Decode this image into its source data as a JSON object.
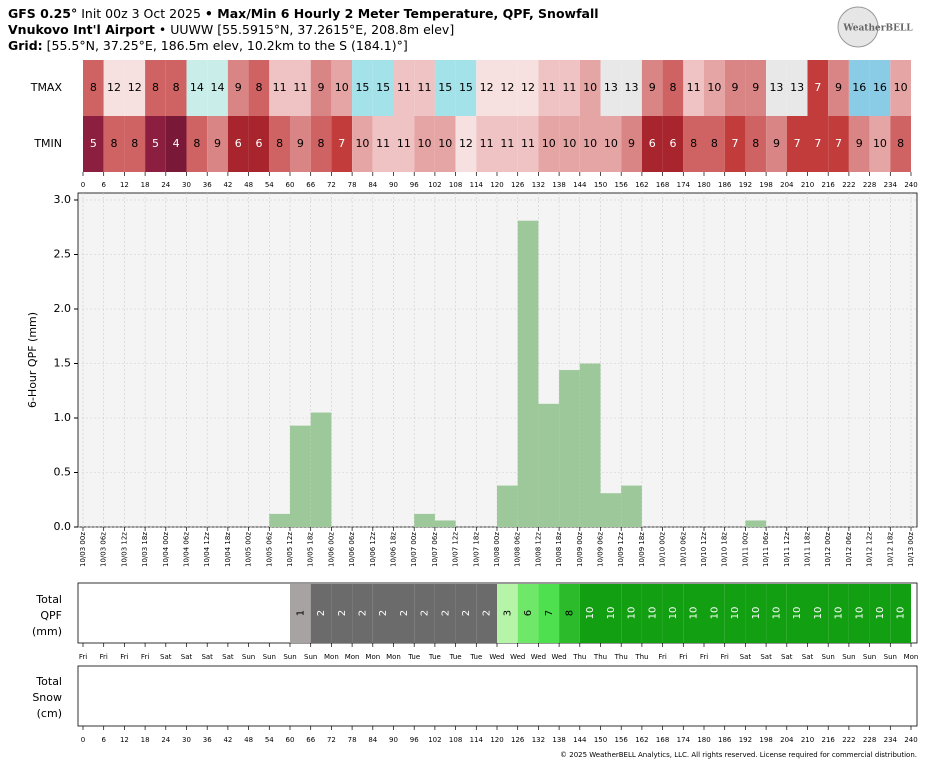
{
  "header": {
    "line1": [
      "GFS 0.25°",
      " Init 00z 3 Oct 2025 ",
      "• Max/Min 6 Hourly 2 Meter Temperature,  QPF,  Snowfall"
    ],
    "line2": [
      "Vnukovo Int'l Airport",
      " • UUWW [55.5915°N, 37.2615°E, 208.8m elev]"
    ],
    "line3": [
      "Grid:",
      " [55.5°N, 37.25°E, 186.5m elev, 10.2km to the S (184.1)°]"
    ],
    "logo": "WeatherBELL"
  },
  "footer": "© 2025 WeatherBELL Analytics, LLC. All rights reserved. License required for commercial distribution.",
  "chart_data": [
    {
      "type": "heatmap",
      "xlim": [
        0,
        240
      ],
      "xticks": [
        0,
        6,
        12,
        18,
        24,
        30,
        36,
        42,
        48,
        54,
        60,
        66,
        72,
        78,
        84,
        90,
        96,
        102,
        108,
        114,
        120,
        126,
        132,
        138,
        144,
        150,
        156,
        162,
        168,
        174,
        180,
        186,
        192,
        198,
        204,
        210,
        216,
        222,
        228,
        234,
        240
      ],
      "series": [
        {
          "name": "TMAX",
          "values": [
            8,
            12,
            12,
            8,
            8,
            14,
            14,
            9,
            8,
            11,
            11,
            9,
            10,
            15,
            15,
            11,
            11,
            15,
            15,
            12,
            12,
            12,
            11,
            11,
            10,
            13,
            13,
            9,
            8,
            11,
            10,
            9,
            9,
            13,
            13,
            7,
            9,
            16,
            16,
            10
          ]
        },
        {
          "name": "TMIN",
          "values": [
            5,
            8,
            8,
            5,
            4,
            8,
            9,
            6,
            6,
            8,
            9,
            8,
            7,
            10,
            11,
            11,
            10,
            10,
            12,
            11,
            11,
            11,
            10,
            10,
            10,
            10,
            9,
            6,
            6,
            8,
            8,
            7,
            8,
            9,
            7,
            7,
            7,
            9,
            10,
            8
          ]
        }
      ]
    },
    {
      "type": "bar",
      "ylabel": "6-Hour QPF (mm)",
      "color": "#9dc89a",
      "grid": true,
      "ylim": [
        0,
        3.0
      ],
      "yticks": [
        {
          "value": 0,
          "label": "0.0"
        },
        0.5,
        {
          "value": 1,
          "label": "1.0"
        },
        1.5,
        {
          "value": 2,
          "label": "2.0"
        },
        2.5,
        {
          "value": 3,
          "label": "3.0"
        }
      ],
      "xlim": [
        0,
        240
      ],
      "xticks": [
        {
          "value": 0,
          "label": "10/03 00z"
        },
        {
          "value": 6,
          "label": "10/03 06z"
        },
        {
          "value": 12,
          "label": "10/03 12z"
        },
        {
          "value": 18,
          "label": "10/03 18z"
        },
        {
          "value": 24,
          "label": "10/04 00z"
        },
        {
          "value": 30,
          "label": "10/04 06z"
        },
        {
          "value": 36,
          "label": "10/04 12z"
        },
        {
          "value": 42,
          "label": "10/04 18z"
        },
        {
          "value": 48,
          "label": "10/05 00z"
        },
        {
          "value": 54,
          "label": "10/05 06z"
        },
        {
          "value": 60,
          "label": "10/05 12z"
        },
        {
          "value": 66,
          "label": "10/05 18z"
        },
        {
          "value": 72,
          "label": "10/06 00z"
        },
        {
          "value": 78,
          "label": "10/06 06z"
        },
        {
          "value": 84,
          "label": "10/06 12z"
        },
        {
          "value": 90,
          "label": "10/06 18z"
        },
        {
          "value": 96,
          "label": "10/07 00z"
        },
        {
          "value": 102,
          "label": "10/07 06z"
        },
        {
          "value": 108,
          "label": "10/07 12z"
        },
        {
          "value": 114,
          "label": "10/07 18z"
        },
        {
          "value": 120,
          "label": "10/08 00z"
        },
        {
          "value": 126,
          "label": "10/08 06z"
        },
        {
          "value": 132,
          "label": "10/08 12z"
        },
        {
          "value": 138,
          "label": "10/08 18z"
        },
        {
          "value": 144,
          "label": "10/09 00z"
        },
        {
          "value": 150,
          "label": "10/09 06z"
        },
        {
          "value": 156,
          "label": "10/09 12z"
        },
        {
          "value": 162,
          "label": "10/09 18z"
        },
        {
          "value": 168,
          "label": "10/10 00z"
        },
        {
          "value": 174,
          "label": "10/10 06z"
        },
        {
          "value": 180,
          "label": "10/10 12z"
        },
        {
          "value": 186,
          "label": "10/10 18z"
        },
        {
          "value": 192,
          "label": "10/11 00z"
        },
        {
          "value": 198,
          "label": "10/11 06z"
        },
        {
          "value": 204,
          "label": "10/11 12z"
        },
        {
          "value": 210,
          "label": "10/11 18z"
        },
        {
          "value": 216,
          "label": "10/12 00z"
        },
        {
          "value": 222,
          "label": "10/12 06z"
        },
        {
          "value": 228,
          "label": "10/12 12z"
        },
        {
          "value": 234,
          "label": "10/12 18z"
        },
        {
          "value": 240,
          "label": "10/13 00z"
        }
      ],
      "x": [
        0,
        6,
        12,
        18,
        24,
        30,
        36,
        42,
        48,
        54,
        60,
        66,
        72,
        78,
        84,
        90,
        96,
        102,
        108,
        114,
        120,
        126,
        132,
        138,
        144,
        150,
        156,
        162,
        168,
        174,
        180,
        186,
        192,
        198,
        204,
        210,
        216,
        222,
        228,
        234
      ],
      "values": [
        0,
        0,
        0,
        0,
        0,
        0,
        0,
        0,
        0,
        0.12,
        0.93,
        1.05,
        0,
        0,
        0,
        0,
        0.12,
        0.06,
        0,
        0,
        0.38,
        2.81,
        1.13,
        1.44,
        1.5,
        0.31,
        0.38,
        0,
        0,
        0,
        0,
        0,
        0.06,
        0,
        0,
        0,
        0,
        0,
        0,
        0
      ]
    },
    {
      "type": "heatmap",
      "ylabel": [
        "Total",
        "QPF",
        "(mm)"
      ],
      "xlim": [
        0,
        240
      ],
      "xticks": [
        {
          "value": 0,
          "label": "Fri"
        },
        {
          "value": 6,
          "label": "Fri"
        },
        {
          "value": 12,
          "label": "Fri"
        },
        {
          "value": 18,
          "label": "Fri"
        },
        {
          "value": 24,
          "label": "Sat"
        },
        {
          "value": 30,
          "label": "Sat"
        },
        {
          "value": 36,
          "label": "Sat"
        },
        {
          "value": 42,
          "label": "Sat"
        },
        {
          "value": 48,
          "label": "Sun"
        },
        {
          "value": 54,
          "label": "Sun"
        },
        {
          "value": 60,
          "label": "Sun"
        },
        {
          "value": 66,
          "label": "Sun"
        },
        {
          "value": 72,
          "label": "Mon"
        },
        {
          "value": 78,
          "label": "Mon"
        },
        {
          "value": 84,
          "label": "Mon"
        },
        {
          "value": 90,
          "label": "Mon"
        },
        {
          "value": 96,
          "label": "Tue"
        },
        {
          "value": 102,
          "label": "Tue"
        },
        {
          "value": 108,
          "label": "Tue"
        },
        {
          "value": 114,
          "label": "Tue"
        },
        {
          "value": 120,
          "label": "Wed"
        },
        {
          "value": 126,
          "label": "Wed"
        },
        {
          "value": 132,
          "label": "Wed"
        },
        {
          "value": 138,
          "label": "Wed"
        },
        {
          "value": 144,
          "label": "Thu"
        },
        {
          "value": 150,
          "label": "Thu"
        },
        {
          "value": 156,
          "label": "Thu"
        },
        {
          "value": 162,
          "label": "Thu"
        },
        {
          "value": 168,
          "label": "Fri"
        },
        {
          "value": 174,
          "label": "Fri"
        },
        {
          "value": 180,
          "label": "Fri"
        },
        {
          "value": 186,
          "label": "Fri"
        },
        {
          "value": 192,
          "label": "Sat"
        },
        {
          "value": 198,
          "label": "Sat"
        },
        {
          "value": 204,
          "label": "Sat"
        },
        {
          "value": 210,
          "label": "Sat"
        },
        {
          "value": 216,
          "label": "Sun"
        },
        {
          "value": 222,
          "label": "Sun"
        },
        {
          "value": 228,
          "label": "Sun"
        },
        {
          "value": 234,
          "label": "Sun"
        },
        {
          "value": 240,
          "label": "Mon"
        }
      ],
      "values": [
        null,
        null,
        null,
        null,
        null,
        null,
        null,
        null,
        null,
        null,
        1,
        2,
        2,
        2,
        2,
        2,
        2,
        2,
        2,
        2,
        3,
        6,
        7,
        8,
        10,
        10,
        10,
        10,
        10,
        10,
        10,
        10,
        10,
        10,
        10,
        10,
        10,
        10,
        10,
        10
      ]
    },
    {
      "type": "heatmap",
      "ylabel": [
        "Total",
        "Snow",
        "(cm)"
      ],
      "xlim": [
        0,
        240
      ],
      "xticks": [
        0,
        6,
        12,
        18,
        24,
        30,
        36,
        42,
        48,
        54,
        60,
        66,
        72,
        78,
        84,
        90,
        96,
        102,
        108,
        114,
        120,
        126,
        132,
        138,
        144,
        150,
        156,
        162,
        168,
        174,
        180,
        186,
        192,
        198,
        204,
        210,
        216,
        222,
        228,
        234,
        240
      ]
    }
  ]
}
